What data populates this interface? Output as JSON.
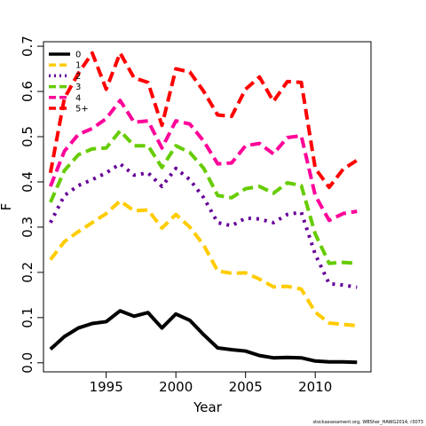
{
  "chart_data": {
    "type": "line",
    "xlabel": "Year",
    "ylabel": "F",
    "xlim": [
      1990.5,
      2014.0
    ],
    "ylim": [
      -0.02,
      0.71
    ],
    "x_ticks": [
      1995,
      2000,
      2005,
      2010
    ],
    "y_ticks": [
      0.0,
      0.1,
      0.2,
      0.3,
      0.4,
      0.5,
      0.6,
      0.7
    ],
    "y_tick_labels": [
      "0.0",
      "0.1",
      "0.2",
      "0.3",
      "0.4",
      "0.5",
      "0.6",
      "0.7"
    ],
    "x": [
      1991,
      1992,
      1993,
      1994,
      1995,
      1996,
      1997,
      1998,
      1999,
      2000,
      2001,
      2002,
      2003,
      2004,
      2005,
      2006,
      2007,
      2008,
      2009,
      2010,
      2011,
      2012,
      2013
    ],
    "legend_position": "top-left",
    "grid": false,
    "series": [
      {
        "name": "0",
        "color": "#000000",
        "dash": "solid",
        "values": [
          0.03,
          0.058,
          0.077,
          0.087,
          0.091,
          0.115,
          0.103,
          0.111,
          0.077,
          0.108,
          0.094,
          0.062,
          0.033,
          0.029,
          0.026,
          0.016,
          0.011,
          0.012,
          0.011,
          0.004,
          0.002,
          0.002,
          0.001
        ]
      },
      {
        "name": "1",
        "color": "#ffcc00",
        "dash": "dashed",
        "values": [
          0.228,
          0.268,
          0.29,
          0.31,
          0.33,
          0.358,
          0.336,
          0.338,
          0.298,
          0.328,
          0.3,
          0.26,
          0.203,
          0.198,
          0.199,
          0.185,
          0.168,
          0.169,
          0.163,
          0.112,
          0.088,
          0.085,
          0.082
        ]
      },
      {
        "name": "2",
        "color": "#660099",
        "dash": "dotted",
        "values": [
          0.31,
          0.37,
          0.392,
          0.405,
          0.42,
          0.44,
          0.415,
          0.42,
          0.39,
          0.43,
          0.405,
          0.365,
          0.31,
          0.303,
          0.32,
          0.318,
          0.31,
          0.328,
          0.333,
          0.24,
          0.175,
          0.172,
          0.167
        ]
      },
      {
        "name": "3",
        "color": "#66cc00",
        "dash": "dashed",
        "values": [
          0.355,
          0.425,
          0.46,
          0.473,
          0.475,
          0.513,
          0.48,
          0.48,
          0.432,
          0.48,
          0.465,
          0.43,
          0.37,
          0.365,
          0.385,
          0.39,
          0.375,
          0.398,
          0.392,
          0.285,
          0.22,
          0.222,
          0.22
        ]
      },
      {
        "name": "4",
        "color": "#ff0099",
        "dash": "dashed",
        "values": [
          0.39,
          0.468,
          0.505,
          0.518,
          0.54,
          0.58,
          0.532,
          0.535,
          0.475,
          0.535,
          0.528,
          0.49,
          0.44,
          0.442,
          0.48,
          0.485,
          0.462,
          0.498,
          0.502,
          0.37,
          0.315,
          0.33,
          0.335
        ]
      },
      {
        "name": "5+",
        "color": "#ff0000",
        "dash": "dashed",
        "values": [
          0.42,
          0.585,
          0.64,
          0.685,
          0.605,
          0.685,
          0.63,
          0.62,
          0.525,
          0.65,
          0.643,
          0.6,
          0.548,
          0.545,
          0.605,
          0.632,
          0.578,
          0.622,
          0.62,
          0.43,
          0.388,
          0.428,
          0.448
        ]
      }
    ]
  },
  "credit": "stockassessment.org, WBSher_HAWG2014, r3073"
}
